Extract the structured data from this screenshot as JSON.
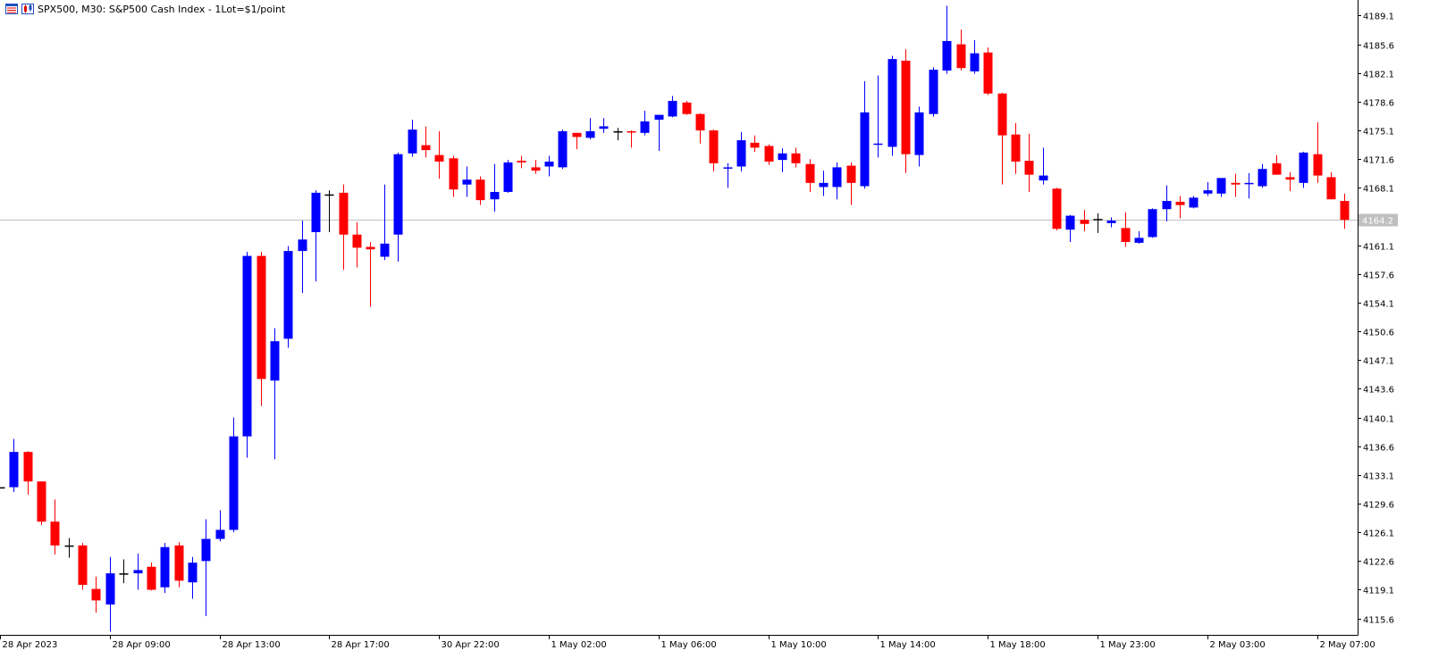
{
  "header": {
    "symbol_text": "SPX500, M30:  S&P500 Cash Index - 1Lot=$1/point",
    "icons": [
      "chart-window-icon",
      "candlestick-icon"
    ]
  },
  "colors": {
    "bull": "#0000FF",
    "bear": "#FF0000",
    "doji": "#000000",
    "axis": "#000000",
    "price_line": "#C0C0C0",
    "price_label_bg": "#C0C0C0",
    "price_label_text": "#FFFFFF"
  },
  "chart_data": {
    "type": "candlestick",
    "title": "SPX500, M30:  S&P500 Cash Index - 1Lot=$1/point",
    "ylim": [
      4113.6,
      4191.0
    ],
    "y_ticks": [
      "4189.1",
      "4185.6",
      "4182.1",
      "4178.6",
      "4175.1",
      "4171.6",
      "4168.1",
      "4161.1",
      "4157.6",
      "4154.1",
      "4150.6",
      "4147.1",
      "4143.6",
      "4140.1",
      "4136.6",
      "4133.1",
      "4129.6",
      "4126.1",
      "4122.6",
      "4119.1",
      "4115.6"
    ],
    "x_ticks": [
      "28 Apr 2023",
      "28 Apr 09:00",
      "28 Apr 13:00",
      "28 Apr 17:00",
      "30 Apr 22:00",
      "1 May 02:00",
      "1 May 06:00",
      "1 May 10:00",
      "1 May 14:00",
      "1 May 18:00",
      "1 May 23:00",
      "2 May 03:00",
      "2 May 07:00"
    ],
    "current_price": "4164.2",
    "candles": [
      [
        4131.6,
        4131.6,
        4131.6,
        4131.6
      ],
      [
        4131.6,
        4137.5,
        4131.0,
        4135.9
      ],
      [
        4135.9,
        4136.0,
        4130.7,
        4132.3
      ],
      [
        4132.3,
        4132.3,
        4127.0,
        4127.4
      ],
      [
        4127.4,
        4130.1,
        4123.4,
        4124.5
      ],
      [
        4124.5,
        4125.4,
        4123.0,
        4124.5
      ],
      [
        4124.5,
        4124.8,
        4119.1,
        4119.7
      ],
      [
        4119.2,
        4120.7,
        4116.3,
        4117.8
      ],
      [
        4117.3,
        4123.1,
        4114.0,
        4121.1
      ],
      [
        4121.1,
        4122.8,
        4119.9,
        4121.1
      ],
      [
        4121.1,
        4123.5,
        4119.1,
        4121.5
      ],
      [
        4121.9,
        4122.4,
        4119.0,
        4119.1
      ],
      [
        4119.4,
        4124.8,
        4118.7,
        4124.3
      ],
      [
        4124.5,
        4124.9,
        4119.4,
        4120.2
      ],
      [
        4120.0,
        4123.1,
        4118.0,
        4122.4
      ],
      [
        4122.6,
        4127.7,
        4115.9,
        4125.3
      ],
      [
        4125.3,
        4128.8,
        4125.0,
        4126.4
      ],
      [
        4126.4,
        4140.1,
        4126.1,
        4137.8
      ],
      [
        4137.8,
        4160.3,
        4135.2,
        4159.8
      ],
      [
        4159.8,
        4160.3,
        4141.5,
        4144.8
      ],
      [
        4144.6,
        4151.0,
        4135.0,
        4149.4
      ],
      [
        4149.7,
        4161.0,
        4148.6,
        4160.4
      ],
      [
        4160.4,
        4164.1,
        4155.3,
        4161.8
      ],
      [
        4162.7,
        4167.8,
        4156.7,
        4167.5
      ],
      [
        4167.3,
        4167.8,
        4162.7,
        4167.3
      ],
      [
        4167.5,
        4168.5,
        4158.1,
        4162.4
      ],
      [
        4162.4,
        4163.9,
        4158.4,
        4160.8
      ],
      [
        4160.9,
        4161.5,
        4153.6,
        4160.6
      ],
      [
        4159.7,
        4168.5,
        4159.3,
        4161.3
      ],
      [
        4162.4,
        4172.4,
        4159.1,
        4172.2
      ],
      [
        4172.3,
        4176.4,
        4171.9,
        4175.2
      ],
      [
        4173.3,
        4175.6,
        4171.8,
        4172.7
      ],
      [
        4172.1,
        4175.0,
        4169.2,
        4171.3
      ],
      [
        4171.7,
        4172.0,
        4167.0,
        4167.9
      ],
      [
        4168.5,
        4170.7,
        4167.0,
        4169.1
      ],
      [
        4169.1,
        4169.5,
        4166.0,
        4166.6
      ],
      [
        4166.7,
        4171.0,
        4165.2,
        4167.6
      ],
      [
        4167.6,
        4171.5,
        4167.5,
        4171.2
      ],
      [
        4171.4,
        4172.0,
        4170.5,
        4171.2
      ],
      [
        4170.6,
        4171.5,
        4169.8,
        4170.2
      ],
      [
        4170.7,
        4172.0,
        4169.5,
        4171.3
      ],
      [
        4170.6,
        4175.2,
        4170.4,
        4175.0
      ],
      [
        4174.8,
        4174.8,
        4172.8,
        4174.3
      ],
      [
        4174.2,
        4176.6,
        4174.0,
        4175.0
      ],
      [
        4175.3,
        4176.6,
        4174.8,
        4175.6
      ],
      [
        4175.0,
        4175.4,
        4173.9,
        4175.0
      ],
      [
        4175.0,
        4175.1,
        4173.0,
        4174.9
      ],
      [
        4174.8,
        4177.5,
        4174.5,
        4176.2
      ],
      [
        4176.4,
        4176.8,
        4172.6,
        4177.0
      ],
      [
        4176.8,
        4179.3,
        4176.7,
        4178.7
      ],
      [
        4178.5,
        4178.7,
        4177.0,
        4177.1
      ],
      [
        4177.1,
        4177.2,
        4173.5,
        4175.1
      ],
      [
        4175.1,
        4175.2,
        4170.1,
        4171.1
      ],
      [
        4170.5,
        4171.1,
        4168.1,
        4170.6
      ],
      [
        4170.7,
        4174.9,
        4170.1,
        4173.9
      ],
      [
        4173.6,
        4174.5,
        4172.5,
        4173.0
      ],
      [
        4173.2,
        4173.4,
        4170.9,
        4171.3
      ],
      [
        4171.5,
        4172.9,
        4170.0,
        4172.3
      ],
      [
        4172.3,
        4173.0,
        4170.6,
        4171.1
      ],
      [
        4171.0,
        4171.6,
        4167.6,
        4168.7
      ],
      [
        4168.2,
        4170.2,
        4167.1,
        4168.7
      ],
      [
        4168.2,
        4171.2,
        4166.7,
        4170.6
      ],
      [
        4170.8,
        4171.2,
        4166.0,
        4168.7
      ],
      [
        4168.3,
        4181.1,
        4168.0,
        4177.3
      ],
      [
        4173.4,
        4181.8,
        4171.8,
        4173.5
      ],
      [
        4173.1,
        4184.2,
        4172.0,
        4183.8
      ],
      [
        4183.6,
        4185.0,
        4169.9,
        4172.2
      ],
      [
        4172.1,
        4178.0,
        4170.7,
        4177.3
      ],
      [
        4177.1,
        4182.8,
        4176.8,
        4182.5
      ],
      [
        4182.4,
        4190.3,
        4182.0,
        4186.0
      ],
      [
        4185.6,
        4187.4,
        4182.4,
        4182.7
      ],
      [
        4182.3,
        4186.1,
        4182.0,
        4184.5
      ],
      [
        4184.6,
        4185.2,
        4179.4,
        4179.6
      ],
      [
        4179.6,
        4179.7,
        4168.5,
        4174.5
      ],
      [
        4174.6,
        4176.0,
        4169.8,
        4171.3
      ],
      [
        4171.4,
        4174.7,
        4167.6,
        4169.7
      ],
      [
        4169.0,
        4173.0,
        4168.5,
        4169.6
      ],
      [
        4168.0,
        4168.1,
        4162.9,
        4163.1
      ],
      [
        4163.0,
        4164.8,
        4161.5,
        4164.7
      ],
      [
        4164.2,
        4165.4,
        4162.8,
        4163.7
      ],
      [
        4164.3,
        4165.0,
        4162.6,
        4164.3
      ],
      [
        4163.8,
        4164.5,
        4163.3,
        4164.1
      ],
      [
        4163.2,
        4165.1,
        4160.9,
        4161.5
      ],
      [
        4161.4,
        4162.8,
        4161.3,
        4162.0
      ],
      [
        4162.1,
        4165.6,
        4162.0,
        4165.5
      ],
      [
        4165.5,
        4168.4,
        4164.0,
        4166.5
      ],
      [
        4166.4,
        4167.1,
        4164.4,
        4166.0
      ],
      [
        4165.7,
        4167.1,
        4165.6,
        4166.9
      ],
      [
        4167.4,
        4168.8,
        4167.1,
        4167.8
      ],
      [
        4167.4,
        4169.2,
        4167.0,
        4169.3
      ],
      [
        4168.7,
        4169.8,
        4167.0,
        4168.5
      ],
      [
        4168.6,
        4169.9,
        4166.8,
        4168.7
      ],
      [
        4168.3,
        4171.0,
        4168.1,
        4170.4
      ],
      [
        4171.1,
        4172.1,
        4169.7,
        4169.7
      ],
      [
        4169.4,
        4170.0,
        4167.7,
        4169.1
      ],
      [
        4168.7,
        4172.5,
        4168.1,
        4172.4
      ],
      [
        4172.2,
        4176.1,
        4168.7,
        4169.6
      ],
      [
        4169.4,
        4170.0,
        4166.7,
        4166.7
      ],
      [
        4166.5,
        4167.4,
        4163.1,
        4164.2
      ]
    ]
  }
}
